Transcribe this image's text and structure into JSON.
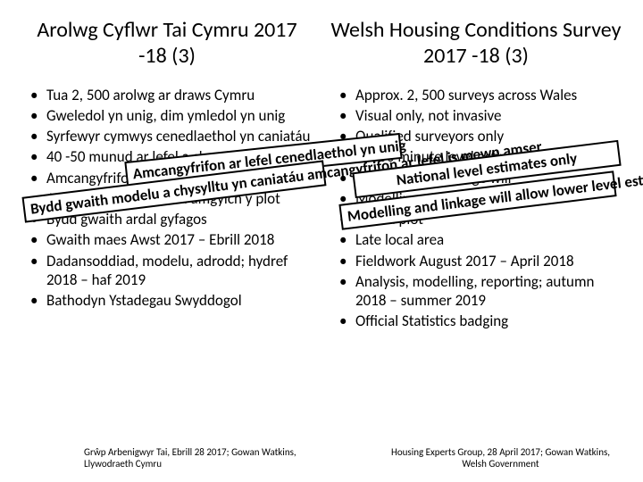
{
  "titles": {
    "left": "Arolwg Cyflwr Tai Cymru 2017 -18 (3)",
    "right": "Welsh Housing Conditions Survey 2017 -18 (3)"
  },
  "left_list": [
    "Tua 2, 500 arolwg ar draws Cymru",
    "Gweledol yn unig, dim ymledol yn unig",
    "Syrfewyr cymwys cenedlaethol yn caniatáu",
    "40 -50 munud ar lefel a chysylltu yn amser",
    "Amcangyfrifon ar lefel is mewn ystafell",
    "Amcangyfrifon modelu amgylch y plot",
    "Bydd gwaith ardal gyfagos",
    "Gwaith maes Awst 2017 – Ebrill 2018",
    "Dadansoddiad, modelu, adrodd; hydref 2018 – haf 2019",
    "Bathodyn Ystadegau Swyddogol"
  ],
  "right_list": [
    "Approx. 2, 500 surveys across Wales",
    "Visual only, not invasive",
    "Qualified surveyors only",
    "40 -50 minute level estimates allow lower",
    "National level linkage will",
    "Modelling estimates in time",
    "Round plot",
    "Late local area",
    "Fieldwork August 2017 – April 2018",
    "Analysis, modelling, reporting; autumn 2018 – summer 2019",
    "Official Statistics badging"
  ],
  "overlays": {
    "ov1": "Amcangyfrifon ar lefel cenedlaethol yn unig",
    "ov2": "Bydd gwaith modelu a chysylltu yn caniatáu amcangyfrifon ar lefel is mewn amser",
    "ov3": "National level estimates only",
    "ov4": "Modelling and linkage will allow lower level estimates in time"
  },
  "footers": {
    "left": "Grŵp Arbenigwyr Tai, Ebrill 28 2017; Gowan Watkins, Llywodraeth Cymru",
    "right": "Housing Experts Group, 28 April 2017; Gowan Watkins, Welsh Government"
  },
  "styling": {
    "slide_width": 720,
    "slide_height": 540,
    "background": "#ffffff",
    "text_color": "#000000",
    "title_fontsize": 24,
    "body_fontsize": 17,
    "footer_fontsize": 11,
    "overlay_border": "#000000",
    "overlay_bg": "#ffffff",
    "overlay_fontweight": 700,
    "overlay_rotation_deg": -7
  }
}
